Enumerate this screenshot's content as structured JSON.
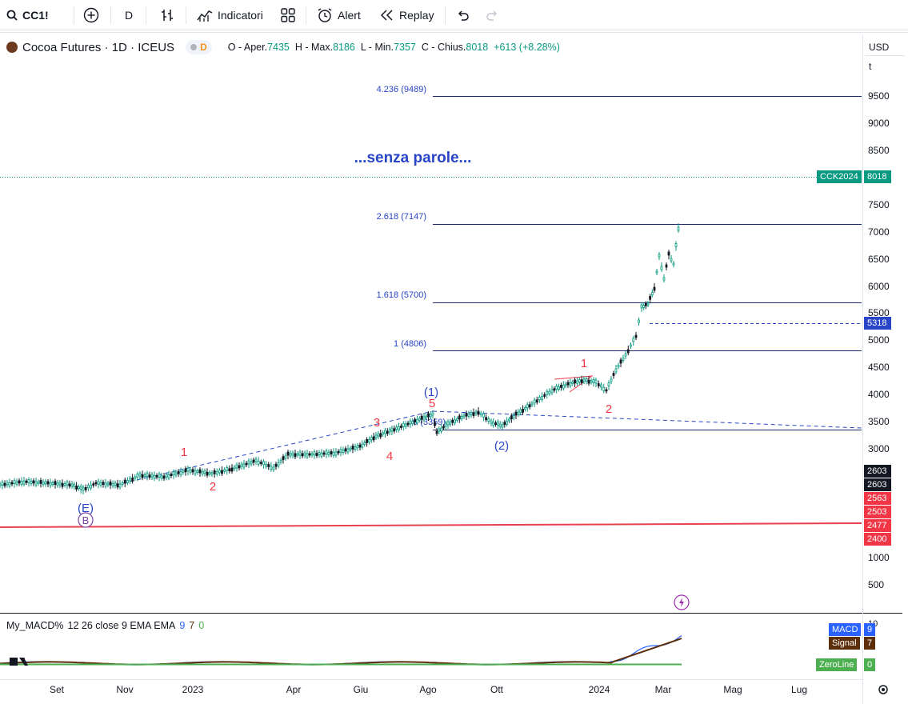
{
  "toolbar": {
    "symbol": "CC1!",
    "interval": "D",
    "indicators_label": "Indicatori",
    "alert_label": "Alert",
    "replay_label": "Replay"
  },
  "legend": {
    "title": "Cocoa Futures · 1D · ICEUS",
    "badge": "D",
    "open_label": "O - Aper.",
    "open_value": "7435",
    "high_label": "H - Max.",
    "high_value": "8186",
    "low_label": "L - Min.",
    "low_value": "7357",
    "close_label": "C - Chius.",
    "close_value": "8018",
    "change": "+613 (+8.28%)"
  },
  "price_axis": {
    "currency": "USD",
    "unit": "t",
    "ticks": [
      "9500",
      "9000",
      "8500",
      "8000",
      "7500",
      "7000",
      "6500",
      "6000",
      "5500",
      "5000",
      "4500",
      "4000",
      "3500",
      "3000",
      "1000",
      "500"
    ]
  },
  "price_tags": [
    {
      "label": "CCK2024",
      "value": "8018",
      "color": "#089981"
    },
    {
      "value": "5318",
      "color": "#2845c8"
    },
    {
      "value": "2603",
      "color": "#131722"
    },
    {
      "value": "2603",
      "color": "#131722"
    },
    {
      "value": "2563",
      "color": "#f23645"
    },
    {
      "value": "2503",
      "color": "#f23645"
    },
    {
      "value": "2477",
      "color": "#f23645"
    },
    {
      "value": "2400",
      "color": "#f23645"
    }
  ],
  "fib_levels": [
    {
      "label": "4.236 (9489)"
    },
    {
      "label": "2.618 (7147)"
    },
    {
      "label": "1.618 (5700)"
    },
    {
      "label": "1 (4806)"
    },
    {
      "label": "0 (3359)"
    }
  ],
  "annotation": "...senza parole...",
  "wave_labels": {
    "red_1a": "1",
    "red_2a": "2",
    "red_3": "3",
    "red_4": "4",
    "red_5": "5",
    "blue_1": "(1)",
    "blue_2": "(2)",
    "red_1b": "1",
    "red_2b": "2",
    "purple_e": "(E)",
    "purple_b": "B"
  },
  "time_axis": [
    "Set",
    "Nov",
    "2023",
    "Apr",
    "Giu",
    "Ago",
    "Ott",
    "2024",
    "Mar",
    "Mag",
    "Lug"
  ],
  "macd": {
    "name": "My_MACD%",
    "params": "12 26 close 9 EMA EMA",
    "v1": "9",
    "v2": "7",
    "v3": "0",
    "axis_tick": "10",
    "tags": [
      {
        "label": "MACD",
        "value": "9",
        "color": "#2962ff"
      },
      {
        "label": "Signal",
        "value": "7",
        "color": "#5d2e0c"
      },
      {
        "label": "ZeroLine",
        "value": "0",
        "color": "#4caf50"
      }
    ]
  },
  "colors": {
    "up": "#089981",
    "down": "#131722",
    "fib": "#1c2b6e",
    "wave_red": "#f23645",
    "wave_blue": "#2845c8",
    "trendline_red": "#e8404f"
  }
}
